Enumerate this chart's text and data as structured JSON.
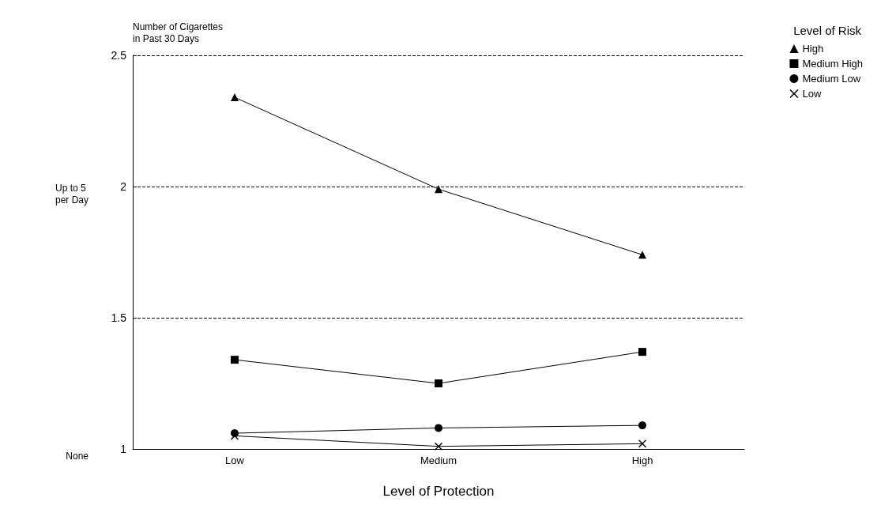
{
  "chart_data": {
    "type": "line",
    "ylabel": "Number of Cigarettes\nin Past 30 Days",
    "xlabel": "Level of Protection",
    "legend_title": "Level of Risk",
    "categories": [
      "Low",
      "Medium",
      "High"
    ],
    "series": [
      {
        "name": "High",
        "color": "#000000",
        "marker": "triangle",
        "values": [
          2.34,
          1.99,
          1.74
        ]
      },
      {
        "name": "Medium High",
        "color": "#000000",
        "marker": "square",
        "values": [
          1.34,
          1.25,
          1.37
        ]
      },
      {
        "name": "Medium Low",
        "color": "#000000",
        "marker": "circle",
        "values": [
          1.06,
          1.08,
          1.09
        ]
      },
      {
        "name": "Low",
        "color": "#000000",
        "marker": "cross",
        "values": [
          1.05,
          1.01,
          1.02
        ]
      }
    ],
    "ylim": [
      1,
      2.5
    ],
    "yticks": [
      1,
      1.5,
      2,
      2.5
    ],
    "annotations": [
      "None",
      "Up to 5\nper Day"
    ],
    "grid": "y",
    "legend": "top right",
    "line_style": "solid"
  }
}
